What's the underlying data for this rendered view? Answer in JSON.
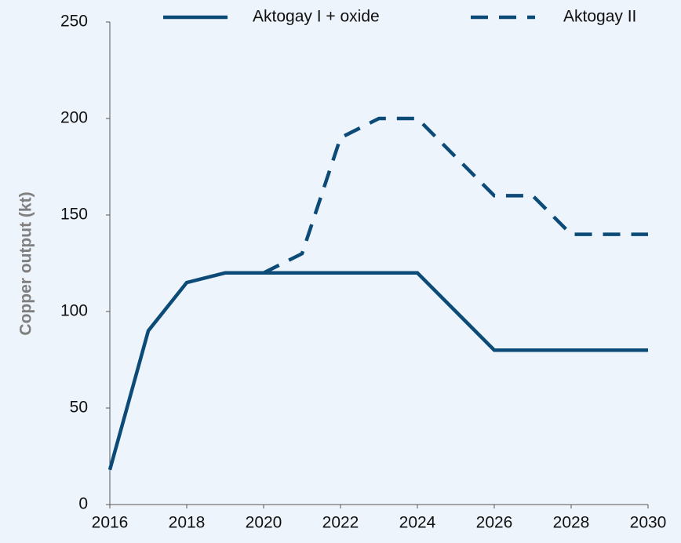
{
  "chart_data": {
    "type": "line",
    "y_label": "Copper output (kt)",
    "x": [
      2016,
      2017,
      2018,
      2019,
      2020,
      2021,
      2022,
      2023,
      2024,
      2025,
      2026,
      2027,
      2028,
      2029,
      2030
    ],
    "series": [
      {
        "name": "Aktogay I + oxide",
        "color": "#0c4b78",
        "style": "solid",
        "values": [
          18,
          90,
          115,
          120,
          120,
          120,
          120,
          120,
          120,
          100,
          80,
          80,
          80,
          80,
          80
        ]
      },
      {
        "name": "Aktogay II",
        "color": "#0c4b78",
        "style": "dashed",
        "values": [
          null,
          null,
          null,
          null,
          120,
          130,
          190,
          200,
          200,
          180,
          160,
          160,
          140,
          140,
          140
        ]
      }
    ],
    "xlim": [
      2016,
      2030
    ],
    "xticks": [
      2016,
      2018,
      2020,
      2022,
      2024,
      2026,
      2028,
      2030
    ],
    "ylim": [
      0,
      250
    ],
    "yticks": [
      0,
      50,
      100,
      150,
      200,
      250
    ],
    "grid": false,
    "legend": "top"
  }
}
